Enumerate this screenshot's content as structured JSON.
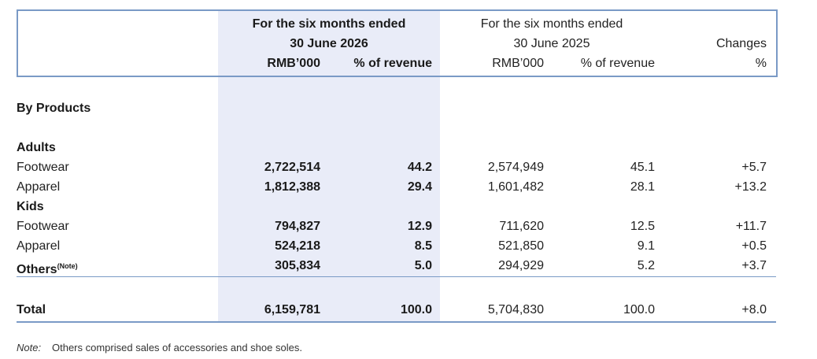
{
  "header": {
    "current_period_line1": "For the six months ended",
    "current_period_line2": "30 June 2026",
    "prior_period_line1": "For the six months ended",
    "prior_period_line2": "30 June 2025",
    "changes_line1": "Changes",
    "changes_line2": "%",
    "col_rmb_current": "RMB’000",
    "col_pct_current": "% of revenue",
    "col_rmb_prior": "RMB’000",
    "col_pct_prior": "% of revenue"
  },
  "section_title": "By Products",
  "groups": {
    "adults": "Adults",
    "kids": "Kids"
  },
  "rows": [
    {
      "label": "Footwear",
      "rmb_2026": "2,722,514",
      "pct_2026": "44.2",
      "rmb_2025": "2,574,949",
      "pct_2025": "45.1",
      "change": "+5.7"
    },
    {
      "label": "Apparel",
      "rmb_2026": "1,812,388",
      "pct_2026": "29.4",
      "rmb_2025": "1,601,482",
      "pct_2025": "28.1",
      "change": "+13.2"
    },
    {
      "label": "Footwear",
      "rmb_2026": "794,827",
      "pct_2026": "12.9",
      "rmb_2025": "711,620",
      "pct_2025": "12.5",
      "change": "+11.7"
    },
    {
      "label": "Apparel",
      "rmb_2026": "524,218",
      "pct_2026": "8.5",
      "rmb_2025": "521,850",
      "pct_2025": "9.1",
      "change": "+0.5"
    },
    {
      "label": "Others",
      "sup": "(Note)",
      "rmb_2026": "305,834",
      "pct_2026": "5.0",
      "rmb_2025": "294,929",
      "pct_2025": "5.2",
      "change": "+3.7"
    }
  ],
  "total": {
    "label": "Total",
    "rmb_2026": "6,159,781",
    "pct_2026": "100.0",
    "rmb_2025": "5,704,830",
    "pct_2025": "100.0",
    "change": "+8.0"
  },
  "note": {
    "label": "Note:",
    "text": "Others comprised sales of accessories and shoe soles."
  },
  "colors": {
    "highlight": "#e9ecf8",
    "rule": "#7a9ac6"
  }
}
